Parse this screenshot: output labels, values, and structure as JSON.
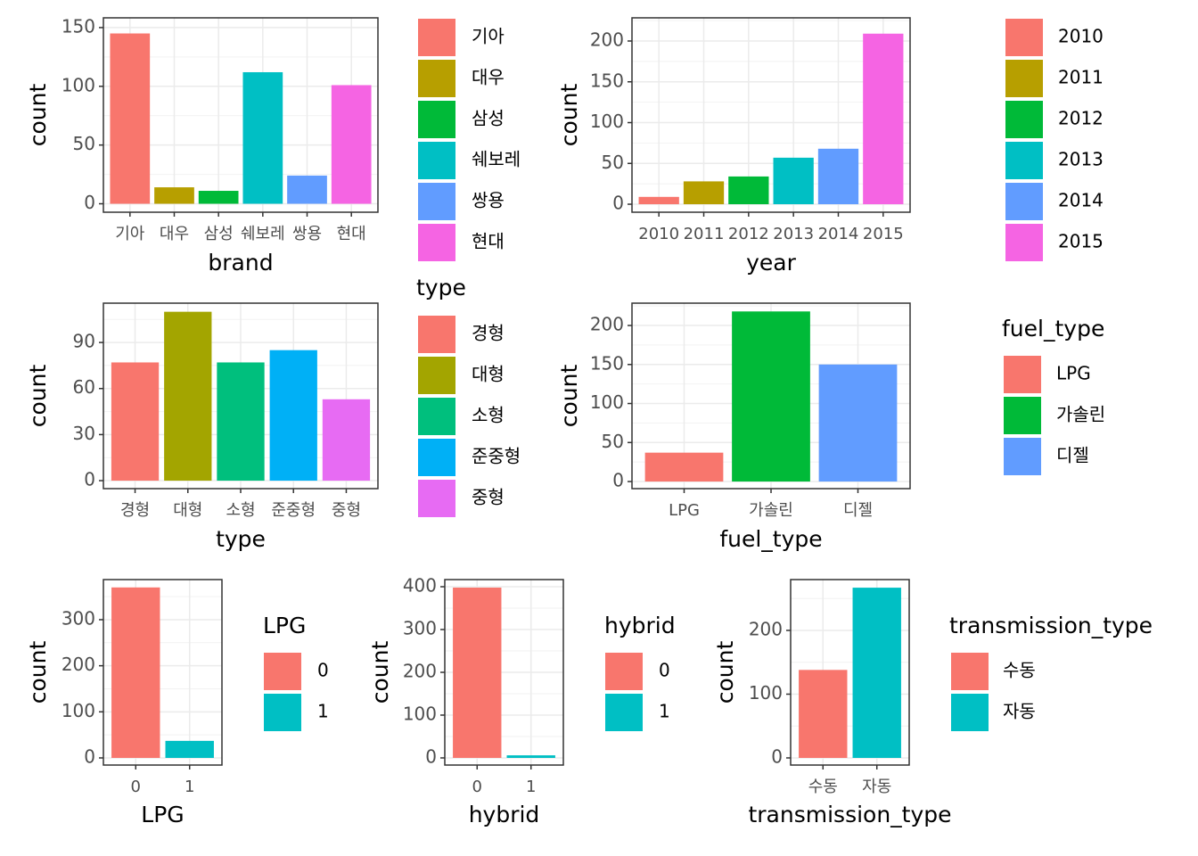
{
  "chart_data": [
    {
      "type": "bar",
      "x_label": "brand",
      "y_label": "count",
      "categories": [
        "기아",
        "대우",
        "삼성",
        "쉐보레",
        "쌍용",
        "현대"
      ],
      "values": [
        145,
        14,
        11,
        112,
        24,
        101
      ],
      "colors": [
        "#F8766D",
        "#B79F00",
        "#00BA38",
        "#00BFC4",
        "#619CFF",
        "#F564E3"
      ],
      "ylim": [
        -7.2,
        158.3
      ],
      "yticks": [
        0,
        50,
        100,
        150
      ],
      "grid": true
    },
    {
      "type": "bar",
      "x_label": "year",
      "y_label": "count",
      "categories": [
        "2010",
        "2011",
        "2012",
        "2013",
        "2014",
        "2015"
      ],
      "values": [
        9,
        28,
        34,
        57,
        68,
        209
      ],
      "colors": [
        "#F8766D",
        "#B79F00",
        "#00BA38",
        "#00BFC4",
        "#619CFF",
        "#F564E3"
      ],
      "ylim": [
        -9.8,
        228.4
      ],
      "yticks": [
        0,
        50,
        100,
        150,
        200
      ],
      "grid": true
    },
    {
      "type": "bar",
      "x_label": "type",
      "y_label": "count",
      "legend_title": "type",
      "categories": [
        "경형",
        "대형",
        "소형",
        "준중형",
        "중형"
      ],
      "values": [
        77,
        110,
        77,
        85,
        53
      ],
      "colors": [
        "#F8766D",
        "#A3A500",
        "#00BF7D",
        "#00B0F6",
        "#E76BF3"
      ],
      "ylim": [
        -5.2,
        115.6
      ],
      "yticks": [
        0,
        30,
        60,
        90
      ],
      "grid": true
    },
    {
      "type": "bar",
      "x_label": "fuel_type",
      "y_label": "count",
      "legend_title": "fuel_type",
      "categories": [
        "LPG",
        "가솔린",
        "디젤"
      ],
      "values": [
        37,
        218,
        150
      ],
      "colors": [
        "#F8766D",
        "#00BA38",
        "#619CFF"
      ],
      "ylim": [
        -9.1,
        228.6
      ],
      "yticks": [
        0,
        50,
        100,
        150,
        200
      ],
      "grid": true
    },
    {
      "type": "bar",
      "x_label": "LPG",
      "y_label": "count",
      "legend_title": "LPG",
      "categories": [
        "0",
        "1"
      ],
      "values": [
        370,
        37
      ],
      "colors": [
        "#F8766D",
        "#00BFC4"
      ],
      "ylim": [
        -15.5,
        387
      ],
      "yticks": [
        0,
        100,
        200,
        300
      ],
      "grid": true
    },
    {
      "type": "bar",
      "x_label": "hybrid",
      "y_label": "count",
      "legend_title": "hybrid",
      "categories": [
        "0",
        "1"
      ],
      "values": [
        398,
        6
      ],
      "colors": [
        "#F8766D",
        "#00BFC4"
      ],
      "ylim": [
        -16.7,
        416.7
      ],
      "yticks": [
        0,
        100,
        200,
        300,
        400
      ],
      "grid": true
    },
    {
      "type": "bar",
      "x_label": "transmission_type",
      "y_label": "count",
      "legend_title": "transmission_type",
      "categories": [
        "수동",
        "자동"
      ],
      "values": [
        138,
        267
      ],
      "colors": [
        "#F8766D",
        "#00BFC4"
      ],
      "ylim": [
        -11.2,
        279.7
      ],
      "yticks": [
        0,
        100,
        200
      ],
      "grid": true
    }
  ]
}
